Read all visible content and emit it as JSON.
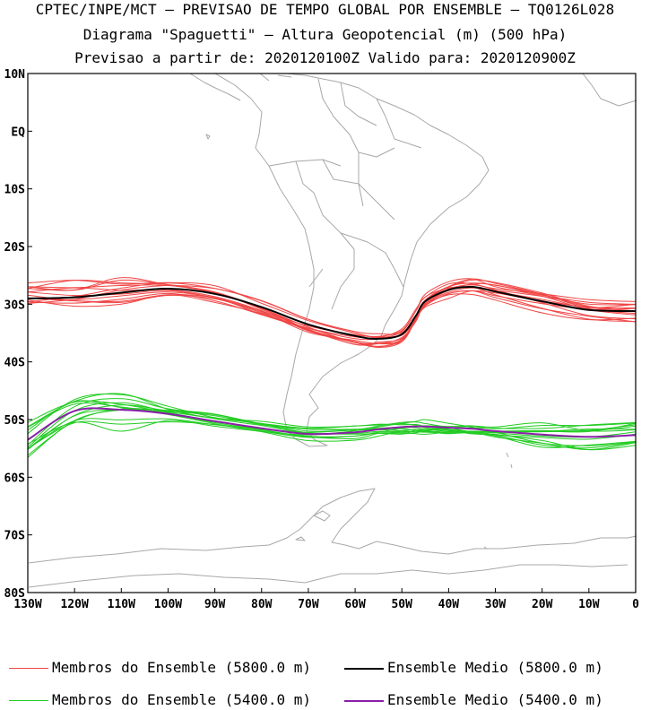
{
  "title": {
    "line1": "CPTEC/INPE/MCT — PREVISAO DE TEMPO GLOBAL POR ENSEMBLE — TQ0126L028",
    "line2": "Diagrama \"Spaguetti\" — Altura Geopotencial (m) (500 hPa)",
    "line3": "Previsao a partir de: 2020120100Z  Valido para: 2020120900Z"
  },
  "chart_data": {
    "type": "line",
    "map_extent": {
      "lon": [
        -130,
        0
      ],
      "lat": [
        -80,
        10
      ]
    },
    "lat_ticks": [
      {
        "value": 10,
        "label": "10N"
      },
      {
        "value": 0,
        "label": "EQ"
      },
      {
        "value": -10,
        "label": "10S"
      },
      {
        "value": -20,
        "label": "20S"
      },
      {
        "value": -30,
        "label": "30S"
      },
      {
        "value": -40,
        "label": "40S"
      },
      {
        "value": -50,
        "label": "50S"
      },
      {
        "value": -60,
        "label": "60S"
      },
      {
        "value": -70,
        "label": "70S"
      },
      {
        "value": -80,
        "label": "80S"
      }
    ],
    "lon_ticks": [
      {
        "value": -130,
        "label": "130W"
      },
      {
        "value": -120,
        "label": "120W"
      },
      {
        "value": -110,
        "label": "110W"
      },
      {
        "value": -100,
        "label": "100W"
      },
      {
        "value": -90,
        "label": "90W"
      },
      {
        "value": -80,
        "label": "80W"
      },
      {
        "value": -70,
        "label": "70W"
      },
      {
        "value": -60,
        "label": "60W"
      },
      {
        "value": -50,
        "label": "50W"
      },
      {
        "value": -40,
        "label": "40W"
      },
      {
        "value": -30,
        "label": "30W"
      },
      {
        "value": -20,
        "label": "20W"
      },
      {
        "value": -10,
        "label": "10W"
      },
      {
        "value": 0,
        "label": "0"
      }
    ],
    "lon_points": [
      -130,
      -120,
      -110,
      -100,
      -90,
      -80,
      -70,
      -60,
      -55,
      -50,
      -47,
      -45,
      -40,
      -35,
      -30,
      -20,
      -10,
      0
    ],
    "mean_5800": [
      -29,
      -28.8,
      -28,
      -27.3,
      -28.2,
      -30.5,
      -33.5,
      -35.5,
      -36,
      -35.2,
      -32,
      -29.5,
      -27.5,
      -27,
      -27.8,
      -29.5,
      -31,
      -31.2
    ],
    "mean_5400": [
      -53.5,
      -48.5,
      -48.3,
      -49,
      -50.3,
      -51.5,
      -52.5,
      -52.2,
      -51.7,
      -51.3,
      -51.2,
      -51.2,
      -51.4,
      -51.6,
      -52,
      -52.6,
      -53,
      -52.7
    ],
    "members_5800_count": 14,
    "members_5400_count": 14,
    "colors": {
      "members_5800": "#f04545",
      "mean_5800": "#000000",
      "members_5400": "#22cc22",
      "mean_5400": "#8a1fa8",
      "coastline": "#a8a8a8"
    },
    "legend": [
      {
        "label": "Membros do Ensemble (5800.0 m)",
        "color": "#f04545"
      },
      {
        "label": "Ensemble Medio (5800.0 m)",
        "color": "#000000"
      },
      {
        "label": "Membros do Ensemble (5400.0 m)",
        "color": "#22cc22"
      },
      {
        "label": "Ensemble Medio (5400.0 m)",
        "color": "#8a1fa8"
      }
    ]
  }
}
